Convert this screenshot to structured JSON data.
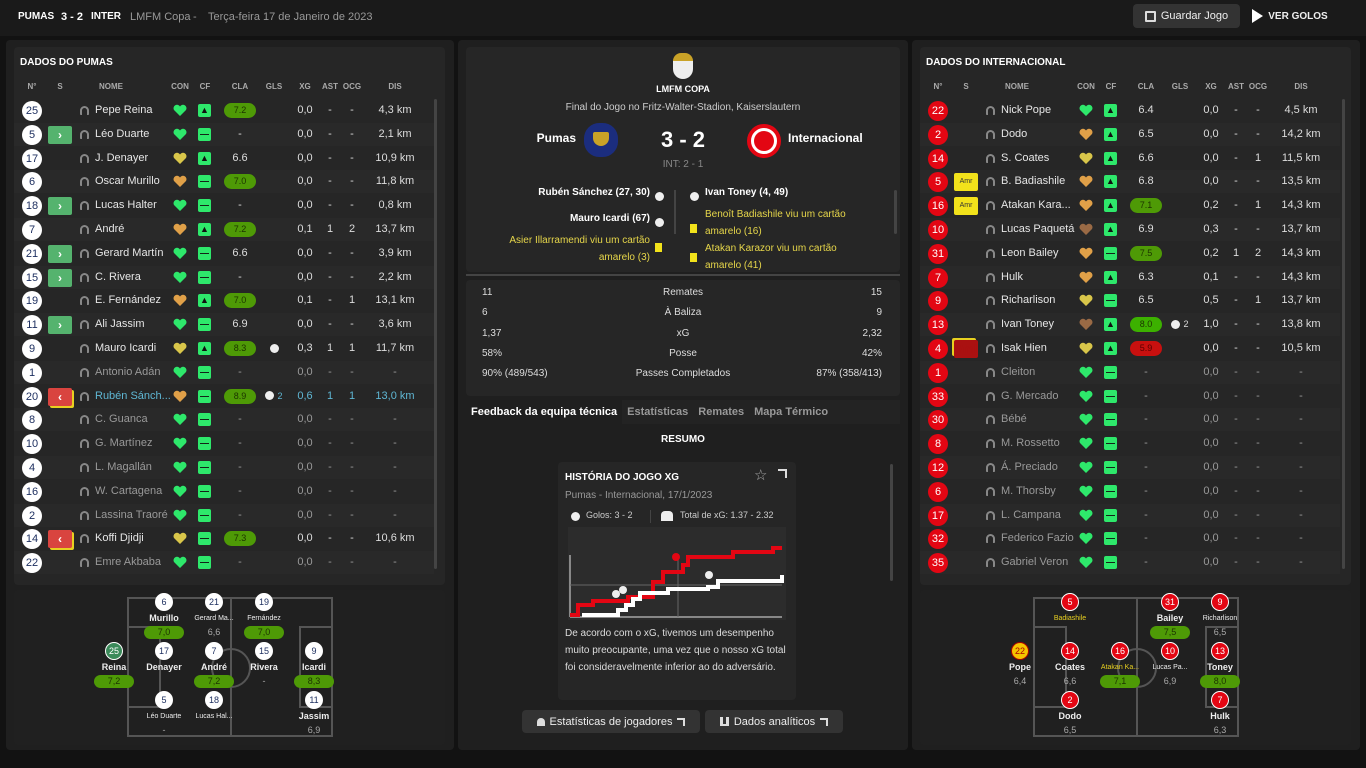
{
  "topbar": {
    "home": "PUMAS",
    "score": "3 - 2",
    "away": "INTER",
    "competition": "LMFM Copa",
    "sep": "-",
    "date": "Terça-feira 17 de Janeiro de 2023",
    "save": "Guardar Jogo",
    "goals": "VER GOLOS"
  },
  "columns": [
    "N°",
    "S",
    "NOME",
    "CON",
    "CF",
    "CLA",
    "GLS",
    "XG",
    "AST",
    "OCG",
    "DIS"
  ],
  "colors": {
    "morale": {
      "green": "#2ee86b",
      "yellow": "#d9c64a",
      "orange": "#e0a048",
      "brown": "#9a6a45"
    },
    "pumas": "#1b2d5e",
    "inter": "#e30613",
    "rating": "#4e9a06"
  },
  "left": {
    "title": "DADOS DO PUMAS",
    "players": [
      {
        "n": "25",
        "s": "",
        "name": "Pepe Reina",
        "con": "green",
        "cf": "up",
        "cla": "7.2",
        "pill": true,
        "gls": "",
        "xg": "0,0",
        "ast": "-",
        "ocg": "-",
        "dis": "4,3 km"
      },
      {
        "n": "5",
        "s": "in",
        "name": "Léo Duarte",
        "con": "green",
        "cf": "neutral",
        "cla": "-",
        "gls": "",
        "xg": "0,0",
        "ast": "-",
        "ocg": "-",
        "dis": "2,1 km"
      },
      {
        "n": "17",
        "s": "",
        "name": "J. Denayer",
        "con": "yellow",
        "cf": "up",
        "cla": "6.6",
        "gls": "",
        "xg": "0,0",
        "ast": "-",
        "ocg": "-",
        "dis": "10,9 km"
      },
      {
        "n": "6",
        "s": "",
        "name": "Oscar Murillo",
        "con": "orange",
        "cf": "neutral",
        "cla": "7.0",
        "pill": true,
        "gls": "",
        "xg": "0,0",
        "ast": "-",
        "ocg": "-",
        "dis": "11,8 km"
      },
      {
        "n": "18",
        "s": "in",
        "name": "Lucas Halter",
        "con": "green",
        "cf": "neutral",
        "cla": "-",
        "gls": "",
        "xg": "0,0",
        "ast": "-",
        "ocg": "-",
        "dis": "0,8 km"
      },
      {
        "n": "7",
        "s": "",
        "name": "André",
        "con": "orange",
        "cf": "up",
        "cla": "7.2",
        "pill": true,
        "gls": "",
        "xg": "0,1",
        "ast": "1",
        "ocg": "2",
        "dis": "13,7 km"
      },
      {
        "n": "21",
        "s": "in",
        "name": "Gerard Martín",
        "con": "green",
        "cf": "neutral",
        "cla": "6.6",
        "gls": "",
        "xg": "0,0",
        "ast": "-",
        "ocg": "-",
        "dis": "3,9 km"
      },
      {
        "n": "15",
        "s": "in",
        "name": "C. Rivera",
        "con": "green",
        "cf": "neutral",
        "cla": "-",
        "gls": "",
        "xg": "0,0",
        "ast": "-",
        "ocg": "-",
        "dis": "2,2 km"
      },
      {
        "n": "19",
        "s": "",
        "name": "E. Fernández",
        "con": "orange",
        "cf": "up",
        "cla": "7.0",
        "pill": true,
        "gls": "",
        "xg": "0,1",
        "ast": "-",
        "ocg": "1",
        "dis": "13,1 km"
      },
      {
        "n": "11",
        "s": "in",
        "name": "Ali Jassim",
        "con": "green",
        "cf": "neutral",
        "cla": "6.9",
        "gls": "",
        "xg": "0,0",
        "ast": "-",
        "ocg": "-",
        "dis": "3,6 km"
      },
      {
        "n": "9",
        "s": "",
        "name": "Mauro Icardi",
        "con": "yellow",
        "cf": "up",
        "cla": "8.3",
        "pill": true,
        "gls": "1",
        "xg": "0,3",
        "ast": "1",
        "ocg": "1",
        "dis": "11,7 km"
      },
      {
        "n": "1",
        "s": "",
        "name": "Antonio Adán",
        "con": "green",
        "cf": "neutral",
        "cla": "-",
        "gls": "",
        "xg": "0,0",
        "ast": "-",
        "ocg": "-",
        "dis": "-",
        "dim": true
      },
      {
        "n": "20",
        "s": "out",
        "name": "Rubén Sánch...",
        "con": "orange",
        "cf": "neutral",
        "cla": "8.9",
        "pill": true,
        "gls": "2",
        "xg": "0,6",
        "ast": "1",
        "ocg": "1",
        "dis": "13,0 km",
        "hl": true
      },
      {
        "n": "8",
        "s": "",
        "name": "C. Guanca",
        "con": "green",
        "cf": "neutral",
        "cla": "-",
        "gls": "",
        "xg": "0,0",
        "ast": "-",
        "ocg": "-",
        "dis": "-",
        "dim": true
      },
      {
        "n": "10",
        "s": "",
        "name": "G. Martínez",
        "con": "green",
        "cf": "neutral",
        "cla": "-",
        "gls": "",
        "xg": "0,0",
        "ast": "-",
        "ocg": "-",
        "dis": "-",
        "dim": true
      },
      {
        "n": "4",
        "s": "",
        "name": "L. Magallán",
        "con": "green",
        "cf": "neutral",
        "cla": "-",
        "gls": "",
        "xg": "0,0",
        "ast": "-",
        "ocg": "-",
        "dis": "-",
        "dim": true
      },
      {
        "n": "16",
        "s": "",
        "name": "W. Cartagena",
        "con": "green",
        "cf": "neutral",
        "cla": "-",
        "gls": "",
        "xg": "0,0",
        "ast": "-",
        "ocg": "-",
        "dis": "-",
        "dim": true
      },
      {
        "n": "2",
        "s": "",
        "name": "Lassina Traoré",
        "con": "green",
        "cf": "neutral",
        "cla": "-",
        "gls": "",
        "xg": "0,0",
        "ast": "-",
        "ocg": "-",
        "dis": "-",
        "dim": true
      },
      {
        "n": "14",
        "s": "out",
        "name": "Koffi Djidji",
        "con": "yellow",
        "cf": "neutral",
        "cla": "7.3",
        "pill": true,
        "gls": "",
        "xg": "0,0",
        "ast": "-",
        "ocg": "-",
        "dis": "10,6 km"
      },
      {
        "n": "22",
        "s": "",
        "name": "Emre Akbaba",
        "con": "green",
        "cf": "neutral",
        "cla": "-",
        "gls": "",
        "xg": "0,0",
        "ast": "-",
        "ocg": "-",
        "dis": "-",
        "dim": true
      }
    ],
    "pitch": [
      {
        "n": "25",
        "name": "Reina",
        "r": "7,2",
        "g": true,
        "gk": true
      },
      {
        "n": "6",
        "name": "Murillo",
        "r": "7,0",
        "g": true
      },
      {
        "n": "21",
        "name": "Gerard Ma...",
        "r": "6,6",
        "s": true
      },
      {
        "n": "17",
        "name": "Denayer",
        "r": ""
      },
      {
        "n": "7",
        "name": "André",
        "r": "7,2",
        "g": true
      },
      {
        "n": "5",
        "name": "Léo Duarte",
        "r": "-",
        "s": true
      },
      {
        "n": "18",
        "name": "Lucas Hal...",
        "r": "",
        "s": true
      },
      {
        "n": "19",
        "name": "Fernández",
        "r": "7,0",
        "g": true,
        "s": true
      },
      {
        "n": "15",
        "name": "Rivera",
        "r": "-"
      },
      {
        "n": "11",
        "name": "Jassim",
        "r": "6,9"
      },
      {
        "n": "9",
        "name": "Icardi",
        "r": "8,3",
        "g": true
      }
    ]
  },
  "right": {
    "title": "DADOS DO INTERNACIONAL",
    "players": [
      {
        "n": "22",
        "s": "",
        "name": "Nick Pope",
        "con": "green",
        "cf": "up",
        "cla": "6.4",
        "gls": "",
        "xg": "0,0",
        "ast": "-",
        "ocg": "-",
        "dis": "4,5 km"
      },
      {
        "n": "2",
        "s": "",
        "name": "Dodo",
        "con": "orange",
        "cf": "up",
        "cla": "6.5",
        "gls": "",
        "xg": "0,0",
        "ast": "-",
        "ocg": "-",
        "dis": "14,2 km"
      },
      {
        "n": "14",
        "s": "",
        "name": "S. Coates",
        "con": "yellow",
        "cf": "up",
        "cla": "6.6",
        "gls": "",
        "xg": "0,0",
        "ast": "-",
        "ocg": "1",
        "dis": "11,5 km"
      },
      {
        "n": "5",
        "s": "amr",
        "sl": "Amr",
        "name": "B. Badiashile",
        "con": "orange",
        "cf": "up",
        "cla": "6.8",
        "gls": "",
        "xg": "0,0",
        "ast": "-",
        "ocg": "-",
        "dis": "13,5 km"
      },
      {
        "n": "16",
        "s": "amr",
        "sl": "Amr",
        "name": "Atakan Kara...",
        "con": "orange",
        "cf": "up",
        "cla": "7.1",
        "pill": true,
        "gls": "",
        "xg": "0,2",
        "ast": "-",
        "ocg": "1",
        "dis": "14,3 km"
      },
      {
        "n": "10",
        "s": "",
        "name": "Lucas Paquetá",
        "con": "brown",
        "cf": "up",
        "cla": "6.9",
        "gls": "",
        "xg": "0,3",
        "ast": "-",
        "ocg": "-",
        "dis": "13,7 km"
      },
      {
        "n": "31",
        "s": "",
        "name": "Leon Bailey",
        "con": "orange",
        "cf": "neutral",
        "cla": "7.5",
        "pill": true,
        "gls": "",
        "xg": "0,2",
        "ast": "1",
        "ocg": "2",
        "dis": "14,3 km"
      },
      {
        "n": "7",
        "s": "",
        "name": "Hulk",
        "con": "orange",
        "cf": "up",
        "cla": "6.3",
        "gls": "",
        "xg": "0,1",
        "ast": "-",
        "ocg": "-",
        "dis": "14,3 km"
      },
      {
        "n": "9",
        "s": "",
        "name": "Richarlison",
        "con": "yellow",
        "cf": "neutral",
        "cla": "6.5",
        "gls": "",
        "xg": "0,5",
        "ast": "-",
        "ocg": "1",
        "dis": "13,7 km"
      },
      {
        "n": "13",
        "s": "",
        "name": "Ivan Toney",
        "con": "brown",
        "cf": "up",
        "cla": "8.0",
        "pill": true,
        "bright": true,
        "gls": "2",
        "xg": "1,0",
        "ast": "-",
        "ocg": "-",
        "dis": "13,8 km"
      },
      {
        "n": "4",
        "s": "vml",
        "sl": "Vml",
        "name": "Isak Hien",
        "con": "yellow",
        "cf": "up",
        "cla": "5.9",
        "pill": true,
        "red": true,
        "gls": "",
        "xg": "0,0",
        "ast": "-",
        "ocg": "-",
        "dis": "10,5 km"
      },
      {
        "n": "1",
        "s": "",
        "name": "Cleiton",
        "con": "green",
        "cf": "neutral",
        "cla": "-",
        "gls": "",
        "xg": "0,0",
        "ast": "-",
        "ocg": "-",
        "dis": "-",
        "dim": true
      },
      {
        "n": "33",
        "s": "",
        "name": "G. Mercado",
        "con": "green",
        "cf": "neutral",
        "cla": "-",
        "gls": "",
        "xg": "0,0",
        "ast": "-",
        "ocg": "-",
        "dis": "-",
        "dim": true
      },
      {
        "n": "30",
        "s": "",
        "name": "Bébé",
        "con": "green",
        "cf": "neutral",
        "cla": "-",
        "gls": "",
        "xg": "0,0",
        "ast": "-",
        "ocg": "-",
        "dis": "-",
        "dim": true
      },
      {
        "n": "8",
        "s": "",
        "name": "M. Rossetto",
        "con": "green",
        "cf": "neutral",
        "cla": "-",
        "gls": "",
        "xg": "0,0",
        "ast": "-",
        "ocg": "-",
        "dis": "-",
        "dim": true
      },
      {
        "n": "12",
        "s": "",
        "name": "Á. Preciado",
        "con": "green",
        "cf": "neutral",
        "cla": "-",
        "gls": "",
        "xg": "0,0",
        "ast": "-",
        "ocg": "-",
        "dis": "-",
        "dim": true
      },
      {
        "n": "6",
        "s": "",
        "name": "M. Thorsby",
        "con": "green",
        "cf": "neutral",
        "cla": "-",
        "gls": "",
        "xg": "0,0",
        "ast": "-",
        "ocg": "-",
        "dis": "-",
        "dim": true
      },
      {
        "n": "17",
        "s": "",
        "name": "L. Campana",
        "con": "green",
        "cf": "neutral",
        "cla": "-",
        "gls": "",
        "xg": "0,0",
        "ast": "-",
        "ocg": "-",
        "dis": "-",
        "dim": true
      },
      {
        "n": "32",
        "s": "",
        "name": "Federico Fazio",
        "con": "green",
        "cf": "neutral",
        "cla": "-",
        "gls": "",
        "xg": "0,0",
        "ast": "-",
        "ocg": "-",
        "dis": "-",
        "dim": true
      },
      {
        "n": "35",
        "s": "",
        "name": "Gabriel Veron",
        "con": "green",
        "cf": "neutral",
        "cla": "-",
        "gls": "",
        "xg": "0,0",
        "ast": "-",
        "ocg": "-",
        "dis": "-",
        "dim": true
      }
    ],
    "pitch": [
      {
        "n": "22",
        "name": "Pope",
        "r": "6,4",
        "gky": true
      },
      {
        "n": "5",
        "name": "Badiashile",
        "r": "",
        "s": true,
        "y": true
      },
      {
        "n": "16",
        "name": "Atakan Ka...",
        "r": "7,1",
        "g": true,
        "s": true,
        "y": true
      },
      {
        "n": "14",
        "name": "Coates",
        "r": "6,6"
      },
      {
        "n": "2",
        "name": "Dodo",
        "r": "6,5"
      },
      {
        "n": "31",
        "name": "Bailey",
        "r": "7,5",
        "g": true
      },
      {
        "n": "9",
        "name": "Richarlison",
        "r": "6,5",
        "s": true
      },
      {
        "n": "10",
        "name": "Lucas Pa...",
        "r": "6,9",
        "s": true
      },
      {
        "n": "7",
        "name": "Hulk",
        "r": "6,3"
      },
      {
        "n": "13",
        "name": "Toney",
        "r": "8,0",
        "g": true
      }
    ]
  },
  "match": {
    "competition": "LMFM COPA",
    "venue": "Final do Jogo no Fritz-Walter-Stadion, Kaiserslautern",
    "home": "Pumas",
    "away": "Internacional",
    "score": "3 - 2",
    "ht": "INT: 2 - 1",
    "home_events": [
      "Rubén Sánchez (27, 30)",
      "Mauro Icardi (67)",
      "Asier Illarramendi viu um cartão amarelo (3)"
    ],
    "away_events": [
      "Ivan Toney (4, 49)",
      "Benoît Badiashile viu um cartão amarelo (16)",
      "Atakan Karazor viu um cartão amarelo (41)"
    ]
  },
  "stats": [
    {
      "h": "11",
      "label": "Remates",
      "a": "15"
    },
    {
      "h": "6",
      "label": "À Baliza",
      "a": "9"
    },
    {
      "h": "1,37",
      "label": "xG",
      "a": "2,32"
    },
    {
      "h": "58%",
      "label": "Posse",
      "a": "42%"
    },
    {
      "h": "90% (489/543)",
      "label": "Passes Completados",
      "a": "87% (358/413)"
    }
  ],
  "tabs": [
    "Feedback da equipa técnica",
    "Estatísticas",
    "Remates",
    "Mapa Térmico"
  ],
  "summary": {
    "heading": "RESUMO",
    "card_title": "HISTÓRIA DO JOGO XG",
    "subtitle": "Pumas - Internacional, 17/1/2023",
    "goals": "Golos: 3 - 2",
    "xg_total": "Total de xG: 1.37 - 2.32",
    "text": "De acordo com o xG, tivemos um desempenho muito preocupante, uma vez que o nosso xG total foi consideravelmente inferior ao do adversário.",
    "btn_players": "Estatísticas de jogadores",
    "btn_analytics": "Dados analíticos"
  }
}
